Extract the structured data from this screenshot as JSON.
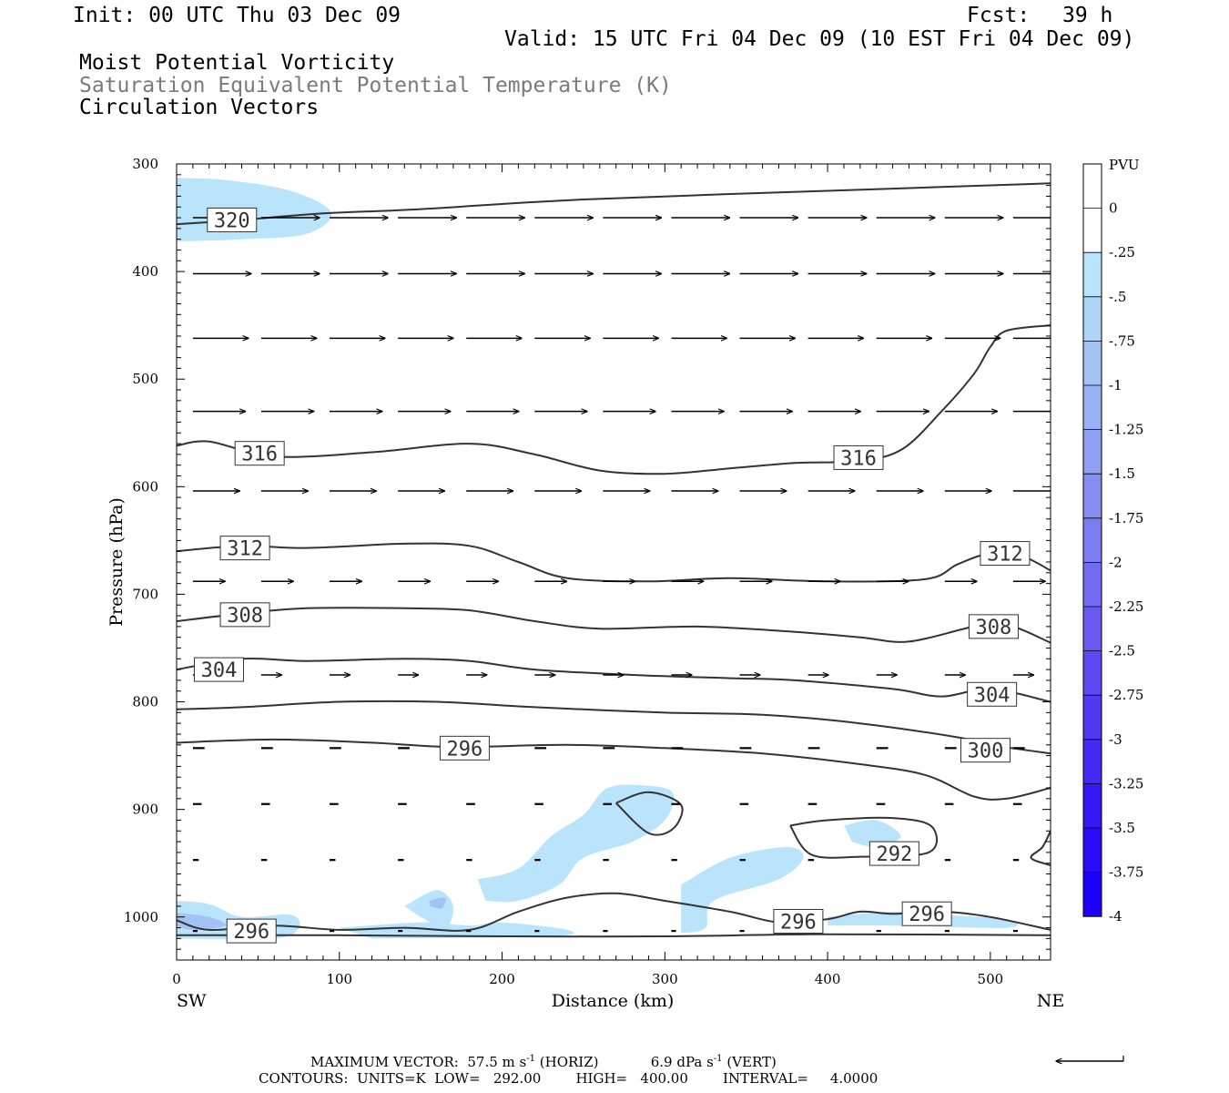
{
  "header": {
    "init": "Init: 00 UTC Thu 03 Dec 09",
    "fcst_label": "Fcst:",
    "fcst_value": "39 h",
    "valid": "Valid: 15 UTC Fri 04 Dec 09 (10 EST Fri 04 Dec 09)",
    "field1": "Moist Potential Vorticity",
    "field2": "Saturation Equivalent Potential Temperature (K)",
    "field3": "Circulation Vectors"
  },
  "colors": {
    "contour": "#333333",
    "vector": "#000000",
    "mpv_fill_light": "#b9e4fb",
    "mpv_fill_mid": "#a3c3f5",
    "gray_text": "#7a7a7a"
  },
  "chart_data": {
    "type": "cross-section",
    "xlabel": "Distance (km)",
    "ylabel": "Pressure (hPa)",
    "xlim": [
      0,
      537
    ],
    "ylim": [
      1040,
      300
    ],
    "x_ticks": [
      0,
      100,
      200,
      300,
      400,
      500
    ],
    "y_ticks": [
      300,
      400,
      500,
      600,
      700,
      800,
      900,
      1000
    ],
    "x_end_labels": {
      "left": "SW",
      "right": "NE"
    },
    "contours": [
      {
        "value": 320,
        "points": [
          [
            0,
            356
          ],
          [
            40,
            352
          ],
          [
            90,
            346
          ],
          [
            150,
            342
          ],
          [
            250,
            333
          ],
          [
            400,
            325
          ],
          [
            537,
            318
          ]
        ],
        "labels": [
          {
            "text": "320",
            "x": 34,
            "p": 352
          }
        ]
      },
      {
        "value": 316,
        "points": [
          [
            0,
            562
          ],
          [
            20,
            558
          ],
          [
            60,
            572
          ],
          [
            120,
            568
          ],
          [
            180,
            560
          ],
          [
            220,
            570
          ],
          [
            260,
            585
          ],
          [
            300,
            588
          ],
          [
            340,
            583
          ],
          [
            380,
            578
          ],
          [
            420,
            576
          ],
          [
            446,
            565
          ],
          [
            470,
            530
          ],
          [
            490,
            495
          ],
          [
            500,
            470
          ],
          [
            510,
            455
          ],
          [
            537,
            450
          ]
        ],
        "labels": [
          {
            "text": "316",
            "x": 51,
            "p": 569
          },
          {
            "text": "316",
            "x": 419,
            "p": 573
          }
        ]
      },
      {
        "value": 312,
        "points": [
          [
            0,
            660
          ],
          [
            40,
            655
          ],
          [
            80,
            657
          ],
          [
            140,
            653
          ],
          [
            180,
            655
          ],
          [
            210,
            670
          ],
          [
            240,
            685
          ],
          [
            290,
            688
          ],
          [
            340,
            685
          ],
          [
            400,
            688
          ],
          [
            460,
            686
          ],
          [
            480,
            672
          ],
          [
            500,
            662
          ],
          [
            520,
            665
          ],
          [
            537,
            678
          ]
        ],
        "labels": [
          {
            "text": "312",
            "x": 42,
            "p": 657
          },
          {
            "text": "312",
            "x": 509,
            "p": 662
          }
        ]
      },
      {
        "value": 308,
        "points": [
          [
            0,
            725
          ],
          [
            40,
            718
          ],
          [
            80,
            713
          ],
          [
            140,
            713
          ],
          [
            180,
            715
          ],
          [
            220,
            725
          ],
          [
            260,
            732
          ],
          [
            320,
            730
          ],
          [
            380,
            735
          ],
          [
            420,
            740
          ],
          [
            450,
            744
          ],
          [
            490,
            730
          ],
          [
            510,
            728
          ],
          [
            537,
            745
          ]
        ],
        "labels": [
          {
            "text": "308",
            "x": 42,
            "p": 719
          },
          {
            "text": "308",
            "x": 502,
            "p": 730
          }
        ]
      },
      {
        "value": 304,
        "points": [
          [
            0,
            770
          ],
          [
            40,
            760
          ],
          [
            80,
            762
          ],
          [
            140,
            760
          ],
          [
            180,
            762
          ],
          [
            220,
            770
          ],
          [
            280,
            775
          ],
          [
            340,
            778
          ],
          [
            380,
            780
          ],
          [
            440,
            788
          ],
          [
            470,
            795
          ],
          [
            500,
            788
          ],
          [
            537,
            800
          ]
        ],
        "labels": [
          {
            "text": "304",
            "x": 26,
            "p": 770
          },
          {
            "text": "304",
            "x": 501,
            "p": 793
          }
        ]
      },
      {
        "value": 300,
        "points": [
          [
            0,
            807
          ],
          [
            40,
            805
          ],
          [
            100,
            800
          ],
          [
            160,
            800
          ],
          [
            220,
            805
          ],
          [
            300,
            810
          ],
          [
            360,
            812
          ],
          [
            420,
            820
          ],
          [
            480,
            833
          ],
          [
            500,
            840
          ],
          [
            537,
            848
          ]
        ],
        "labels": [
          {
            "text": "300",
            "x": 497,
            "p": 845
          }
        ]
      },
      {
        "value": 296,
        "points": [
          [
            0,
            838
          ],
          [
            60,
            835
          ],
          [
            120,
            838
          ],
          [
            170,
            842
          ],
          [
            240,
            840
          ],
          [
            300,
            843
          ],
          [
            360,
            848
          ],
          [
            420,
            858
          ],
          [
            460,
            868
          ],
          [
            490,
            888
          ],
          [
            510,
            890
          ],
          [
            537,
            880
          ]
        ],
        "labels": [
          {
            "text": "296",
            "x": 177,
            "p": 843
          }
        ]
      },
      {
        "value": 296,
        "points": [
          [
            0,
            1003
          ],
          [
            20,
            1012
          ],
          [
            60,
            1008
          ],
          [
            100,
            1012
          ],
          [
            140,
            1010
          ],
          [
            180,
            1012
          ],
          [
            210,
            995
          ],
          [
            240,
            982
          ],
          [
            270,
            978
          ],
          [
            300,
            985
          ],
          [
            340,
            995
          ],
          [
            370,
            1005
          ],
          [
            400,
            1002
          ],
          [
            420,
            995
          ],
          [
            440,
            997
          ],
          [
            470,
            995
          ],
          [
            500,
            1000
          ],
          [
            537,
            1012
          ]
        ],
        "labels": [
          {
            "text": "296",
            "x": 46,
            "p": 1013
          },
          {
            "text": "296",
            "x": 382,
            "p": 1004
          },
          {
            "text": "296",
            "x": 461,
            "p": 997
          }
        ]
      },
      {
        "value": 292,
        "points": [
          [
            270,
            894
          ],
          [
            290,
            884
          ],
          [
            310,
            896
          ],
          [
            305,
            918
          ],
          [
            290,
            922
          ],
          [
            270,
            894
          ]
        ],
        "labels": []
      },
      {
        "value": 292,
        "points": [
          [
            377,
            915
          ],
          [
            400,
            910
          ],
          [
            440,
            908
          ],
          [
            464,
            916
          ],
          [
            462,
            940
          ],
          [
            420,
            944
          ],
          [
            390,
            942
          ],
          [
            377,
            915
          ]
        ],
        "labels": [
          {
            "text": "292",
            "x": 441,
            "p": 941
          }
        ]
      },
      {
        "value": 292,
        "points": [
          [
            0,
            1017
          ],
          [
            100,
            1017
          ],
          [
            200,
            1018
          ],
          [
            300,
            1018
          ],
          [
            400,
            1016
          ],
          [
            537,
            1017
          ]
        ],
        "labels": []
      },
      {
        "value": 292,
        "points": [
          [
            537,
            920
          ],
          [
            532,
            935
          ],
          [
            525,
            945
          ],
          [
            537,
            952
          ]
        ],
        "labels": []
      }
    ],
    "mpv_regions": [
      {
        "level": "-0.25",
        "points": [
          [
            0,
            313
          ],
          [
            30,
            315
          ],
          [
            70,
            325
          ],
          [
            95,
            345
          ],
          [
            80,
            365
          ],
          [
            40,
            370
          ],
          [
            0,
            372
          ]
        ]
      },
      {
        "level": "-0.25",
        "points": [
          [
            0,
            985
          ],
          [
            20,
            988
          ],
          [
            40,
            1000
          ],
          [
            70,
            998
          ],
          [
            75,
            1010
          ],
          [
            60,
            1020
          ],
          [
            0,
            1020
          ]
        ]
      },
      {
        "level": "-0.25",
        "points": [
          [
            140,
            990
          ],
          [
            160,
            975
          ],
          [
            170,
            990
          ],
          [
            165,
            1010
          ],
          [
            150,
            1000
          ]
        ]
      },
      {
        "level": "-0.25",
        "points": [
          [
            185,
            965
          ],
          [
            210,
            955
          ],
          [
            230,
            925
          ],
          [
            250,
            905
          ],
          [
            265,
            880
          ],
          [
            290,
            878
          ],
          [
            305,
            885
          ],
          [
            300,
            910
          ],
          [
            280,
            930
          ],
          [
            250,
            945
          ],
          [
            235,
            970
          ],
          [
            210,
            985
          ],
          [
            190,
            985
          ]
        ]
      },
      {
        "level": "-0.25",
        "points": [
          [
            310,
            970
          ],
          [
            340,
            945
          ],
          [
            375,
            935
          ],
          [
            385,
            945
          ],
          [
            370,
            965
          ],
          [
            330,
            985
          ],
          [
            325,
            1010
          ],
          [
            310,
            1015
          ]
        ]
      },
      {
        "level": "-0.25",
        "points": [
          [
            410,
            915
          ],
          [
            430,
            910
          ],
          [
            445,
            925
          ],
          [
            430,
            935
          ],
          [
            415,
            930
          ]
        ]
      },
      {
        "level": "-0.25",
        "points": [
          [
            100,
            1010
          ],
          [
            150,
            1005
          ],
          [
            180,
            1008
          ],
          [
            200,
            1005
          ],
          [
            240,
            1012
          ],
          [
            230,
            1018
          ],
          [
            120,
            1020
          ]
        ]
      },
      {
        "level": "-0.25",
        "points": [
          [
            400,
            1000
          ],
          [
            440,
            995
          ],
          [
            470,
            998
          ],
          [
            510,
            1002
          ],
          [
            510,
            1010
          ],
          [
            440,
            1008
          ],
          [
            400,
            1008
          ]
        ]
      },
      {
        "level": "-0.5",
        "points": [
          [
            0,
            996
          ],
          [
            20,
            1000
          ],
          [
            30,
            1008
          ],
          [
            10,
            1012
          ],
          [
            0,
            1008
          ]
        ]
      },
      {
        "level": "-0.5",
        "points": [
          [
            155,
            985
          ],
          [
            165,
            982
          ],
          [
            163,
            992
          ],
          [
            156,
            990
          ]
        ]
      }
    ],
    "vectors": {
      "rows": [
        {
          "p": 350,
          "u": 1.0,
          "w": 0.0
        },
        {
          "p": 402,
          "u": 1.0,
          "w": 0.0
        },
        {
          "p": 462,
          "u": 0.95,
          "w": 0.0
        },
        {
          "p": 530,
          "u": 0.9,
          "w": 0.0
        },
        {
          "p": 604,
          "u": 0.8,
          "w": 0.0
        },
        {
          "p": 688,
          "u": 0.55,
          "w": 0.0
        },
        {
          "p": 775,
          "u": 0.35,
          "w": 0.0
        },
        {
          "p": 843,
          "u": 0.2,
          "w": 0.0
        },
        {
          "p": 895,
          "u": 0.15,
          "w": 0.0
        },
        {
          "p": 947,
          "u": 0.1,
          "w": 0.0
        },
        {
          "p": 1013,
          "u": 0.08,
          "w": 0.0
        }
      ],
      "x_positions": [
        10,
        52,
        94,
        136,
        178,
        220,
        262,
        304,
        346,
        388,
        430,
        472,
        514
      ]
    },
    "colorbar": {
      "title": "PVU",
      "labels": [
        "0",
        "-.25",
        "-.5",
        "-.75",
        "-1",
        "-1.25",
        "-1.5",
        "-1.75",
        "-2",
        "-2.25",
        "-2.5",
        "-2.75",
        "-3",
        "-3.25",
        "-3.5",
        "-3.75",
        "-4"
      ],
      "colors": [
        "#ffffff",
        "#ffffff",
        "#b9e4fb",
        "#aed5f8",
        "#a3c3f5",
        "#99b1f3",
        "#909ff2",
        "#878df1",
        "#7e7cf1",
        "#746bf1",
        "#6a5af1",
        "#5e4af2",
        "#5138f3",
        "#4428f4",
        "#3618f6",
        "#2a0cf8",
        "#1c00fb"
      ]
    },
    "footer": {
      "max_vector_label": "MAXIMUM VECTOR:",
      "horiz": "57.5 m s",
      "horiz_exp": "-1",
      "horiz_unit": "(HORIZ)",
      "vert": "6.9 dPa s",
      "vert_exp": "-1",
      "vert_unit": "(VERT)",
      "contours": "CONTOURS:  UNITS=K  LOW=   292.00        HIGH=   400.00        INTERVAL=     4.0000"
    }
  }
}
